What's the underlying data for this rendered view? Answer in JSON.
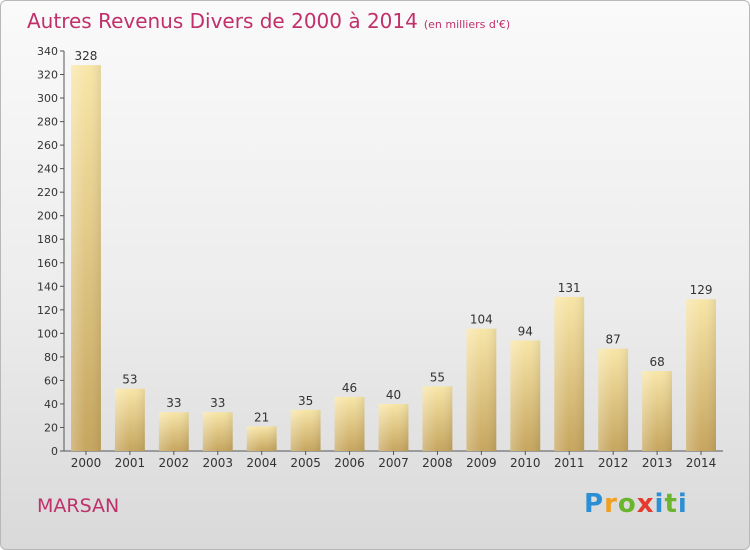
{
  "header": {
    "title": "Autres Revenus Divers de 2000 à 2014",
    "subtitle": "(en milliers d'€)"
  },
  "footer": {
    "city": "MARSAN",
    "brand": "Proxiti"
  },
  "colors": {
    "title": "#c0306a",
    "bar_light": "#f7e3a3",
    "bar_dark": "#c8a862",
    "text": "#333333"
  },
  "chart_data": {
    "type": "bar",
    "title": "Autres Revenus Divers de 2000 à 2014",
    "subtitle": "(en milliers d'€)",
    "xlabel": "",
    "ylabel": "",
    "categories": [
      "2000",
      "2001",
      "2002",
      "2003",
      "2004",
      "2005",
      "2006",
      "2007",
      "2008",
      "2009",
      "2010",
      "2011",
      "2012",
      "2013",
      "2014"
    ],
    "values": [
      328,
      53,
      33,
      33,
      21,
      35,
      46,
      40,
      55,
      104,
      94,
      131,
      87,
      68,
      129
    ],
    "ylim": [
      0,
      340
    ],
    "yticks": [
      0,
      20,
      40,
      60,
      80,
      100,
      120,
      140,
      160,
      180,
      200,
      220,
      240,
      260,
      280,
      300,
      320,
      340
    ],
    "grid": false,
    "data_labels": true
  }
}
